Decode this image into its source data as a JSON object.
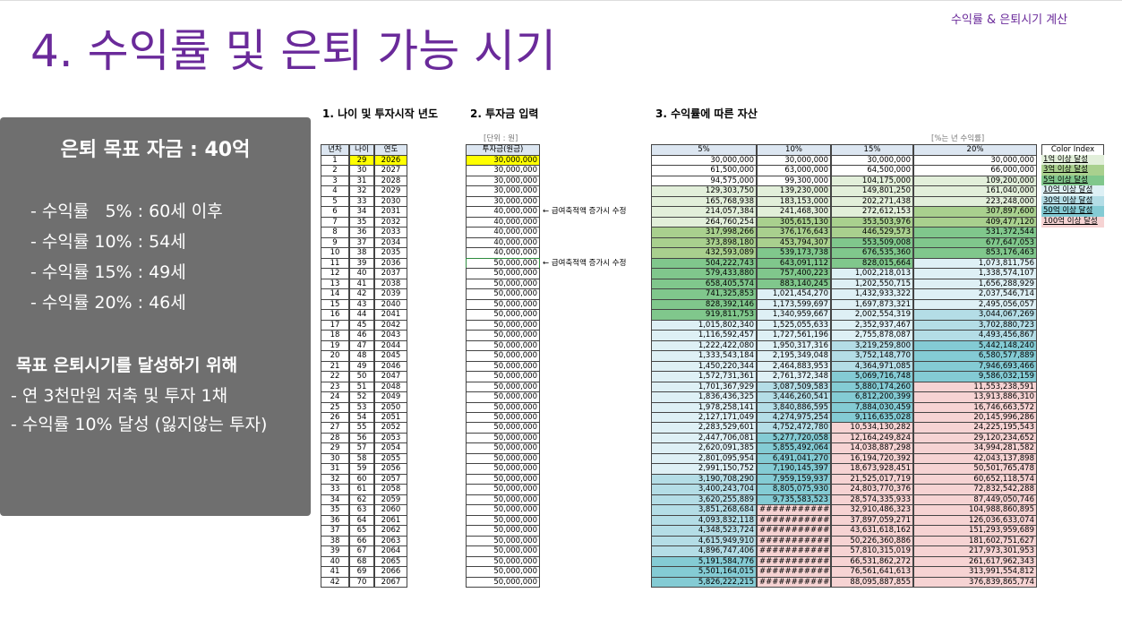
{
  "header": {
    "title": "4. 수익률 및 은퇴 가능 시기",
    "tag": "수익률 & 은퇴시기 계산"
  },
  "panel": {
    "heading": "은퇴 목표 자금 : 40억",
    "rates": [
      "- 수익률   5% : 60세 이후",
      "- 수익률 10% : 54세",
      "- 수익률 15% : 49세",
      "- 수익률 20% : 46세"
    ],
    "subheading": "목표 은퇴시기를 달성하기 위해",
    "actions": [
      "- 연 3천만원 저축 및 투자 1채",
      "- 수익률 10% 달성 (잃지않는 투자)"
    ]
  },
  "sections": [
    "1. 나이 및 투자시작 년도",
    "2. 투자금 입력",
    "3. 수익률에 따른 자산"
  ],
  "unit_note": "[단위 : 원]",
  "rate_note": "[%는 년 수익률]",
  "table": {
    "columns": [
      "년차",
      "나이",
      "연도",
      "투자금(원금)",
      "5%",
      "10%",
      "15%",
      "20%"
    ],
    "notes": [
      "← 급여축적액 증가시 수정",
      "← 급여축적액 증가시 수정"
    ],
    "rows": [
      [
        "1",
        "29",
        "2026",
        "30,000,000",
        "30,000,000",
        "30,000,000",
        "30,000,000",
        "30,000,000"
      ],
      [
        "2",
        "30",
        "2027",
        "30,000,000",
        "61,500,000",
        "63,000,000",
        "64,500,000",
        "66,000,000"
      ],
      [
        "3",
        "31",
        "2028",
        "30,000,000",
        "94,575,000",
        "99,300,000",
        "104,175,000",
        "109,200,000"
      ],
      [
        "4",
        "32",
        "2029",
        "30,000,000",
        "129,303,750",
        "139,230,000",
        "149,801,250",
        "161,040,000"
      ],
      [
        "5",
        "33",
        "2030",
        "30,000,000",
        "165,768,938",
        "183,153,000",
        "202,271,438",
        "223,248,000"
      ],
      [
        "6",
        "34",
        "2031",
        "40,000,000",
        "214,057,384",
        "241,468,300",
        "272,612,153",
        "307,897,600"
      ],
      [
        "7",
        "35",
        "2032",
        "40,000,000",
        "264,760,254",
        "305,615,130",
        "353,503,976",
        "409,477,120"
      ],
      [
        "8",
        "36",
        "2033",
        "40,000,000",
        "317,998,266",
        "376,176,643",
        "446,529,573",
        "531,372,544"
      ],
      [
        "9",
        "37",
        "2034",
        "40,000,000",
        "373,898,180",
        "453,794,307",
        "553,509,008",
        "677,647,053"
      ],
      [
        "10",
        "38",
        "2035",
        "40,000,000",
        "432,593,089",
        "539,173,738",
        "676,535,360",
        "853,176,463"
      ],
      [
        "11",
        "39",
        "2036",
        "50,000,000",
        "504,222,743",
        "643,091,112",
        "828,015,664",
        "1,073,811,756"
      ],
      [
        "12",
        "40",
        "2037",
        "50,000,000",
        "579,433,880",
        "757,400,223",
        "1,002,218,013",
        "1,338,574,107"
      ],
      [
        "13",
        "41",
        "2038",
        "50,000,000",
        "658,405,574",
        "883,140,245",
        "1,202,550,715",
        "1,656,288,929"
      ],
      [
        "14",
        "42",
        "2039",
        "50,000,000",
        "741,325,853",
        "1,021,454,270",
        "1,432,933,322",
        "2,037,546,714"
      ],
      [
        "15",
        "43",
        "2040",
        "50,000,000",
        "828,392,146",
        "1,173,599,697",
        "1,697,873,321",
        "2,495,056,057"
      ],
      [
        "16",
        "44",
        "2041",
        "50,000,000",
        "919,811,753",
        "1,340,959,667",
        "2,002,554,319",
        "3,044,067,269"
      ],
      [
        "17",
        "45",
        "2042",
        "50,000,000",
        "1,015,802,340",
        "1,525,055,633",
        "2,352,937,467",
        "3,702,880,723"
      ],
      [
        "18",
        "46",
        "2043",
        "50,000,000",
        "1,116,592,457",
        "1,727,561,196",
        "2,755,878,087",
        "4,493,456,867"
      ],
      [
        "19",
        "47",
        "2044",
        "50,000,000",
        "1,222,422,080",
        "1,950,317,316",
        "3,219,259,800",
        "5,442,148,240"
      ],
      [
        "20",
        "48",
        "2045",
        "50,000,000",
        "1,333,543,184",
        "2,195,349,048",
        "3,752,148,770",
        "6,580,577,889"
      ],
      [
        "21",
        "49",
        "2046",
        "50,000,000",
        "1,450,220,344",
        "2,464,883,953",
        "4,364,971,085",
        "7,946,693,466"
      ],
      [
        "22",
        "50",
        "2047",
        "50,000,000",
        "1,572,731,361",
        "2,761,372,348",
        "5,069,716,748",
        "9,586,032,159"
      ],
      [
        "23",
        "51",
        "2048",
        "50,000,000",
        "1,701,367,929",
        "3,087,509,583",
        "5,880,174,260",
        "11,553,238,591"
      ],
      [
        "24",
        "52",
        "2049",
        "50,000,000",
        "1,836,436,325",
        "3,446,260,541",
        "6,812,200,399",
        "13,913,886,310"
      ],
      [
        "25",
        "53",
        "2050",
        "50,000,000",
        "1,978,258,141",
        "3,840,886,595",
        "7,884,030,459",
        "16,746,663,572"
      ],
      [
        "26",
        "54",
        "2051",
        "50,000,000",
        "2,127,171,049",
        "4,274,975,254",
        "9,116,635,028",
        "20,145,996,286"
      ],
      [
        "27",
        "55",
        "2052",
        "50,000,000",
        "2,283,529,601",
        "4,752,472,780",
        "10,534,130,282",
        "24,225,195,543"
      ],
      [
        "28",
        "56",
        "2053",
        "50,000,000",
        "2,447,706,081",
        "5,277,720,058",
        "12,164,249,824",
        "29,120,234,652"
      ],
      [
        "29",
        "57",
        "2054",
        "50,000,000",
        "2,620,091,385",
        "5,855,492,064",
        "14,038,887,298",
        "34,994,281,582"
      ],
      [
        "30",
        "58",
        "2055",
        "50,000,000",
        "2,801,095,954",
        "6,491,041,270",
        "16,194,720,392",
        "42,043,137,898"
      ],
      [
        "31",
        "59",
        "2056",
        "50,000,000",
        "2,991,150,752",
        "7,190,145,397",
        "18,673,928,451",
        "50,501,765,478"
      ],
      [
        "32",
        "60",
        "2057",
        "50,000,000",
        "3,190,708,290",
        "7,959,159,937",
        "21,525,017,719",
        "60,652,118,574"
      ],
      [
        "33",
        "61",
        "2058",
        "50,000,000",
        "3,400,243,704",
        "8,805,075,930",
        "24,803,770,376",
        "72,832,542,288"
      ],
      [
        "34",
        "62",
        "2059",
        "50,000,000",
        "3,620,255,889",
        "9,735,583,523",
        "28,574,335,933",
        "87,449,050,746"
      ],
      [
        "35",
        "63",
        "2060",
        "50,000,000",
        "3,851,268,684",
        "############",
        "32,910,486,323",
        "104,988,860,895"
      ],
      [
        "36",
        "64",
        "2061",
        "50,000,000",
        "4,093,832,118",
        "############",
        "37,897,059,271",
        "126,036,633,074"
      ],
      [
        "37",
        "65",
        "2062",
        "50,000,000",
        "4,348,523,724",
        "############",
        "43,631,618,162",
        "151,293,959,689"
      ],
      [
        "38",
        "66",
        "2063",
        "50,000,000",
        "4,615,949,910",
        "############",
        "50,226,360,886",
        "181,602,751,627"
      ],
      [
        "39",
        "67",
        "2064",
        "50,000,000",
        "4,896,747,406",
        "############",
        "57,810,315,019",
        "217,973,301,953"
      ],
      [
        "40",
        "68",
        "2065",
        "50,000,000",
        "5,191,584,776",
        "############",
        "66,531,862,272",
        "261,617,962,343"
      ],
      [
        "41",
        "69",
        "2066",
        "50,000,000",
        "5,501,164,015",
        "############",
        "76,561,641,613",
        "313,991,554,812"
      ],
      [
        "42",
        "70",
        "2067",
        "50,000,000",
        "5,826,222,215",
        "############",
        "88,095,887,855",
        "376,839,865,774"
      ]
    ]
  },
  "color_index": {
    "title": "Color Index",
    "items": [
      {
        "label": "1억 이상 달성",
        "color": "#e2efda"
      },
      {
        "label": "3억 이상 달성",
        "color": "#a9d08e"
      },
      {
        "label": "5억 이상 달성",
        "color": "#80c78c"
      },
      {
        "label": "10억 이상 달성",
        "color": "#def0f5"
      },
      {
        "label": "30억 이상 달성",
        "color": "#b4dde6"
      },
      {
        "label": "50억 이상 달성",
        "color": "#84cbd4"
      },
      {
        "label": "100억 이상 달성",
        "color": "#f6d3d3"
      }
    ]
  }
}
